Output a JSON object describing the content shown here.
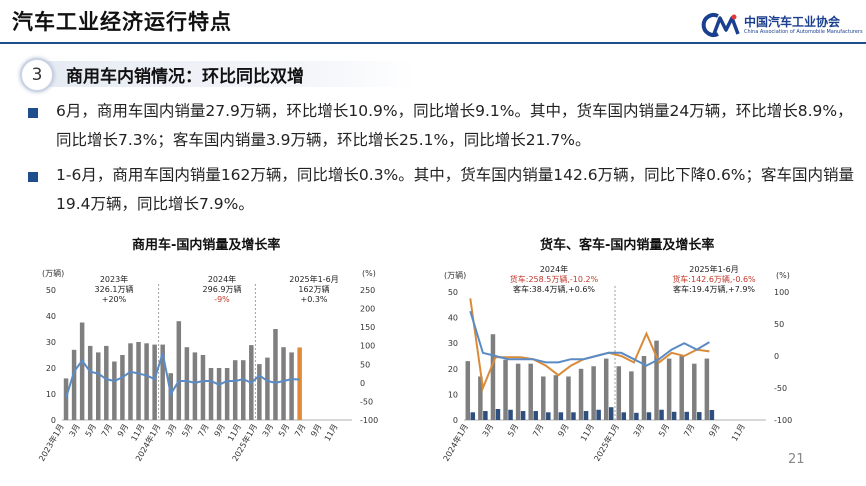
{
  "header": {
    "title": "汽车工业经济运行特点",
    "logo_cn": "中国汽车工业协会",
    "logo_en": "China Association of Automobile Manufacturers",
    "logo_mark": "CAAM"
  },
  "section": {
    "number": "3",
    "title": "商用车内销情况：环比同比双增"
  },
  "bullets": [
    {
      "text": "6月，商用车国内销量27.9万辆，环比增长10.9%，同比增长9.1%。其中，货车国内销量24万辆，环比增长8.9%，同比增长7.3%；客车国内销量3.9万辆，环比增长25.1%，同比增长21.7%。"
    },
    {
      "text": "1-6月，商用车国内销量162万辆，同比增长0.3%。其中，货车国内销量142.6万辆，同比下降0.6%；客车国内销量19.4万辆，同比增长7.9%。"
    }
  ],
  "page_number": "21",
  "colors": {
    "navy": "#1f4e8c",
    "bar": "#7f7f7f",
    "bar_hl": "#e08a3a",
    "line_blue": "#5b8bc4",
    "line_orange": "#d98b3a",
    "bar_navy": "#2e4e7e",
    "red": "#c0392b"
  },
  "chart_data": [
    {
      "type": "bar",
      "title": "商用车-国内销量及增长率",
      "left_unit": "(万辆)",
      "right_unit": "(%)",
      "ylim": [
        0,
        50
      ],
      "yticks": [
        "0",
        "10",
        "20",
        "30",
        "40",
        "50"
      ],
      "y2lim": [
        -100,
        250
      ],
      "y2ticks": [
        "-100",
        "-50",
        "0",
        "50",
        "100",
        "150",
        "200",
        "250"
      ],
      "x_tick_labels": [
        "2023年1月",
        "3月",
        "5月",
        "7月",
        "9月",
        "11月",
        "2024年1月",
        "3月",
        "5月",
        "7月",
        "9月",
        "11月",
        "2025年1月",
        "3月",
        "5月",
        "7月",
        "9月",
        "11月"
      ],
      "series": [
        {
          "values": [
            16,
            27,
            37.5,
            28.5,
            26,
            28.5,
            22.5,
            25,
            29.5,
            30,
            29.5,
            29,
            29,
            18,
            38,
            28,
            26,
            25,
            20,
            20,
            20,
            23,
            23,
            28.8,
            21.5,
            24,
            35,
            28,
            26,
            27.9
          ]
        },
        {
          "values": [
            -40,
            30,
            60,
            30,
            25,
            10,
            5,
            15,
            30,
            25,
            20,
            10,
            80,
            -30,
            5,
            5,
            0,
            5,
            5,
            -5,
            5,
            5,
            10,
            0,
            20,
            5,
            0,
            5,
            10,
            9.1
          ]
        }
      ],
      "annotations": [
        {
          "lines": [
            "2023年",
            "326.1万辆",
            "+20%"
          ]
        },
        {
          "lines": [
            "2024年",
            "296.9万辆",
            "-9%"
          ]
        },
        {
          "lines": [
            "2025年1-6月",
            "162万辆",
            "+0.3%"
          ]
        }
      ]
    },
    {
      "type": "bar",
      "title": "货车、客车-国内销量及增长率",
      "left_unit": "(万辆)",
      "right_unit": "(%)",
      "ylim": [
        0,
        50
      ],
      "yticks": [
        "0",
        "10",
        "20",
        "30",
        "40",
        "50"
      ],
      "y2lim": [
        -100,
        100
      ],
      "y2ticks": [
        "-100",
        "-50",
        "0",
        "50",
        "100"
      ],
      "x_tick_labels": [
        "2024年1月",
        "3月",
        "5月",
        "7月",
        "9月",
        "11月",
        "2025年1月",
        "3月",
        "5月",
        "7月",
        "9月",
        "11月"
      ],
      "series": [
        {
          "values": [
            23,
            17,
            33.5,
            23.5,
            22,
            22,
            17,
            17.5,
            17,
            20,
            21,
            24,
            21,
            19,
            25,
            31,
            24,
            25,
            22,
            24
          ]
        },
        {
          "values": [
            3,
            3.5,
            4.3,
            4,
            3.5,
            3.5,
            3,
            3,
            3,
            3.5,
            4,
            5,
            3,
            2.8,
            3,
            4,
            3.2,
            3.2,
            3.1,
            3.9
          ]
        },
        {
          "values": [
            90,
            -50,
            -2,
            -2,
            -2,
            -5,
            -15,
            -30,
            -15,
            -5,
            0,
            5,
            0,
            -10,
            35,
            -10,
            5,
            0,
            10,
            7.3
          ]
        },
        {
          "values": [
            70,
            5,
            0,
            -5,
            -5,
            -5,
            -10,
            -10,
            -5,
            -5,
            0,
            5,
            5,
            -5,
            -15,
            -5,
            10,
            20,
            10,
            21.7
          ]
        }
      ],
      "annotations": [
        {
          "lines": [
            "2024年",
            "货车:258.5万辆,-10.2%",
            "客车:38.4万辆,+0.6%"
          ]
        },
        {
          "lines": [
            "2025年1-6月",
            "货车:142.6万辆,-0.6%",
            "客车:19.4万辆,+7.9%"
          ]
        }
      ]
    }
  ]
}
